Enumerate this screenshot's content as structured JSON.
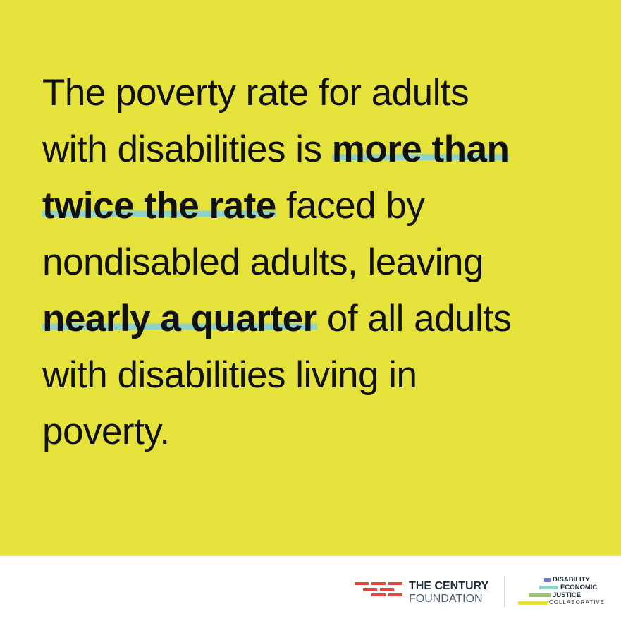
{
  "quote": {
    "lines": [
      [
        {
          "text": "The poverty rate for adults"
        }
      ],
      [
        {
          "text": "with disabilities is "
        },
        {
          "text": "more than",
          "emphasis": true
        }
      ],
      [
        {
          "text": "twice the rate",
          "emphasis": true
        },
        {
          "text": " faced by"
        }
      ],
      [
        {
          "text": "nondisabled adults, leaving"
        }
      ],
      [
        {
          "text": "nearly a quarter",
          "emphasis": true
        },
        {
          "text": " of all adults"
        }
      ],
      [
        {
          "text": "with disabilities living in"
        }
      ],
      [
        {
          "text": "poverty."
        }
      ]
    ]
  },
  "logos": {
    "century": {
      "line1": "THE CENTURY",
      "line2": "FOUNDATION"
    },
    "collaborative": {
      "lines": [
        "DISABILITY",
        "ECONOMIC",
        "JUSTICE",
        "COLLABORATIVE"
      ]
    }
  }
}
